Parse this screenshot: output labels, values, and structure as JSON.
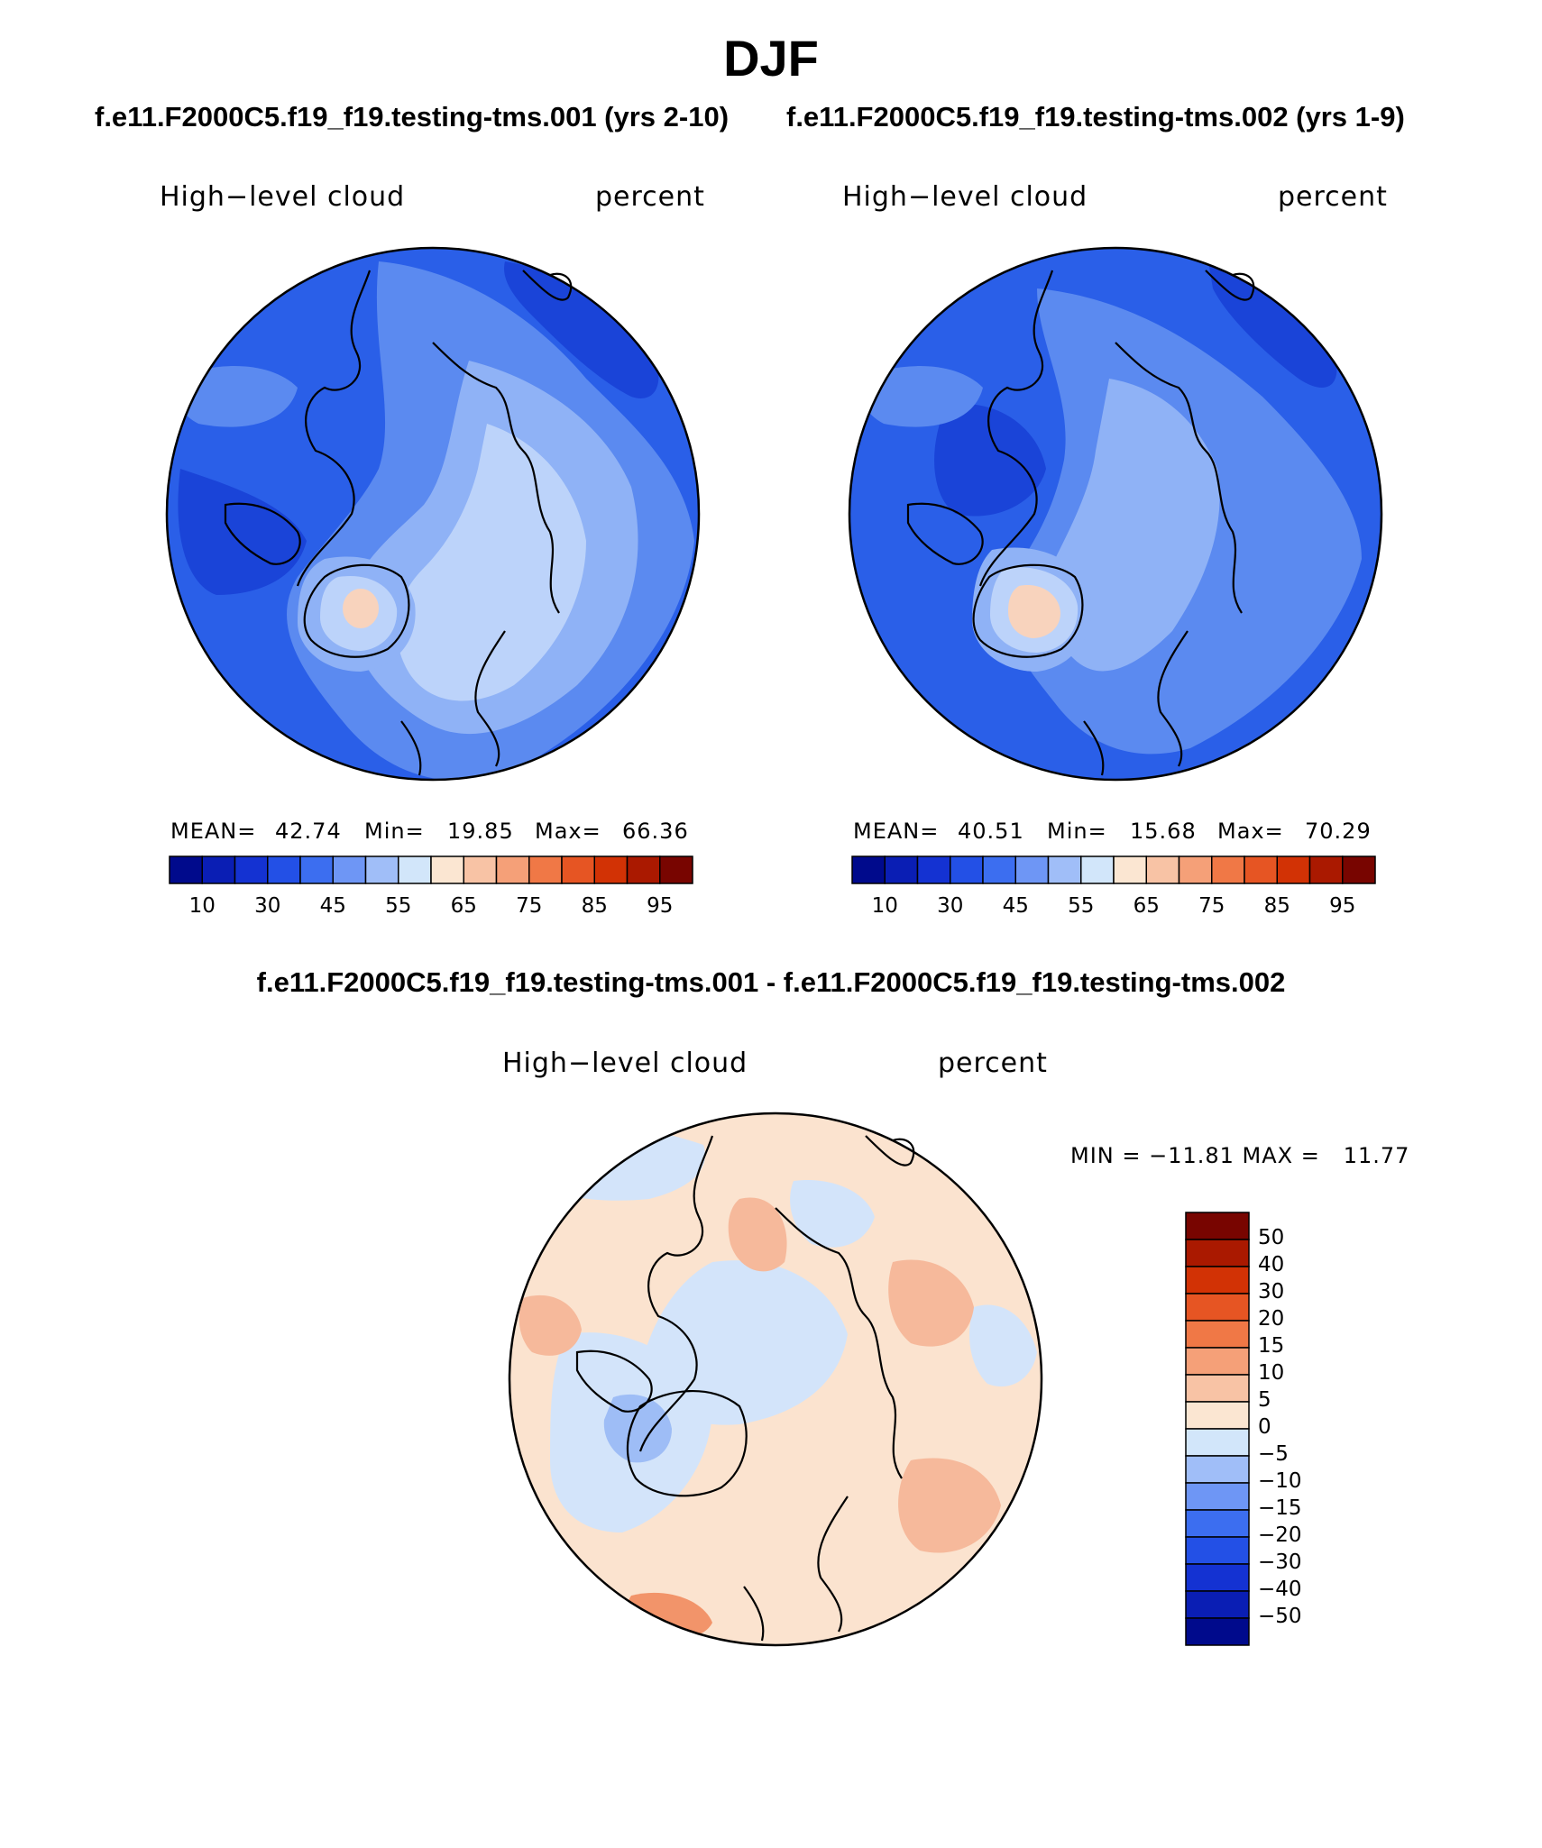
{
  "title": "DJF",
  "case1": {
    "title": "f.e11.F2000C5.f19_f19.testing-tms.001 (yrs 2-10)"
  },
  "case2": {
    "title": "f.e11.F2000C5.f19_f19.testing-tms.002 (yrs 1-9)"
  },
  "diff": {
    "title": "f.e11.F2000C5.f19_f19.testing-tms.001 - f.e11.F2000C5.f19_f19.testing-tms.002"
  },
  "panels": [
    {
      "variable": "High−level cloud",
      "units": "percent",
      "mean_label": "MEAN=",
      "mean": "42.74",
      "min_label": "Min=",
      "min": "19.85",
      "max_label": "Max=",
      "max": "66.36"
    },
    {
      "variable": "High−level cloud",
      "units": "percent",
      "mean_label": "MEAN=",
      "mean": "40.51",
      "min_label": "Min=",
      "min": "15.68",
      "max_label": "Max=",
      "max": "70.29"
    },
    {
      "variable": "High−level cloud",
      "units": "percent",
      "minmax_text": "MIN = −11.81 MAX =   11.77"
    }
  ],
  "colorbar_main": {
    "colors": [
      "#000a8c",
      "#0a1eb4",
      "#1432d2",
      "#2350e6",
      "#3c6ef0",
      "#6e96f5",
      "#a0bef8",
      "#d2e6fa",
      "#fbe6d2",
      "#f8c3a5",
      "#f5a078",
      "#f07846",
      "#e65523",
      "#d23205",
      "#aa1900",
      "#780500"
    ],
    "tick_labels": [
      "10",
      "30",
      "45",
      "55",
      "65",
      "75",
      "85",
      "95"
    ]
  },
  "colorbar_diff": {
    "colors": [
      "#780500",
      "#aa1900",
      "#d23205",
      "#e65523",
      "#f07846",
      "#f5a078",
      "#f8c3a5",
      "#fbe6d2",
      "#d2e6fa",
      "#a0bef8",
      "#6e96f5",
      "#3c6ef0",
      "#2350e6",
      "#1432d2",
      "#0a1eb4",
      "#000a8c"
    ],
    "tick_labels": [
      "50",
      "40",
      "30",
      "20",
      "15",
      "10",
      "5",
      "0",
      "−5",
      "−10",
      "−15",
      "−20",
      "−30",
      "−40",
      "−50"
    ]
  },
  "map_fills": {
    "main_base": "#2a5fe8",
    "main_mid": "#5b8af0",
    "main_light": "#8fb2f6",
    "main_pale": "#bcd3fa",
    "main_warm": "#f8d3bd",
    "main_dark": "#1a44d8",
    "diff_base": "#fbe3cf",
    "diff_pos": "#f6b99b",
    "diff_neg": "#d3e4fa",
    "diff_neg2": "#9ebdf6",
    "diff_pos2": "#f2946a"
  }
}
